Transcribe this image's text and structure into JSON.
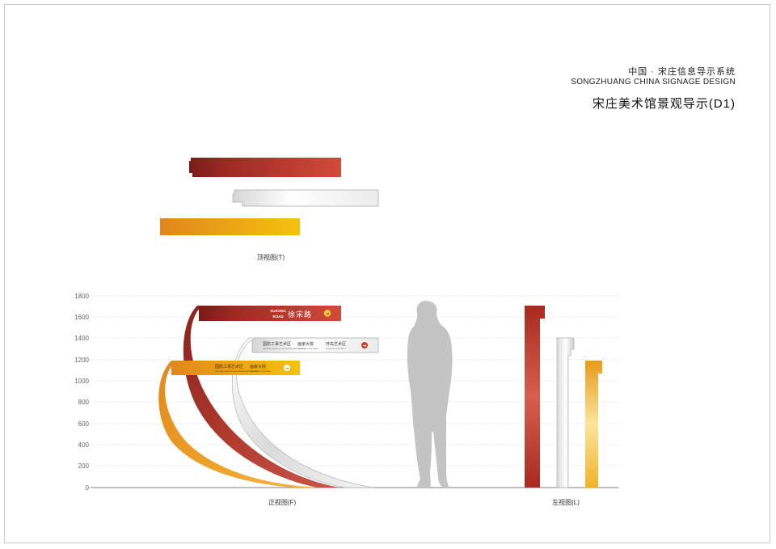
{
  "header": {
    "title_cn": "中国 · 宋庄信息导示系统",
    "title_en": "SONGZHUANG CHINA SIGNAGE DESIGN",
    "drawing_title": "宋庄美术馆景观导示(D1)"
  },
  "views": {
    "top": "顶视图(T)",
    "front": "正视图(F)",
    "left": "左视图(L)"
  },
  "axis": {
    "ticks": [
      "1800",
      "1600",
      "1400",
      "1200",
      "1000",
      "800",
      "600",
      "400",
      "200",
      "0"
    ]
  },
  "signs": {
    "red": {
      "road_en_1": "XUSONG",
      "road_en_2": "ROAD",
      "road_cn": "徐宋路",
      "arrow": "➔"
    },
    "silver": {
      "label_1": "国防工事艺术区",
      "sub_1": "NATIONAL DEFENCE ENGINEERING ARTS DISTRICT",
      "label_2": "画家大院",
      "sub_2": "PAINTERS' COURTYARD",
      "label_3": "环岛艺术区",
      "sub_3": "ISLAND ARTS DISTRICT",
      "arrow": "➔"
    },
    "orange": {
      "label_1": "国防工事艺术区",
      "sub_1": "NATIONAL DEFENCE ENGINEERING ARTS DISTRICT",
      "label_2": "画家大院",
      "sub_2": "PAINTERS' COURTYARD",
      "arrow": "➔"
    }
  },
  "colors": {
    "red": "#b8352a",
    "silver": "#e6e6e6",
    "orange": "#f0a418",
    "figure": "#c4c4c4"
  }
}
